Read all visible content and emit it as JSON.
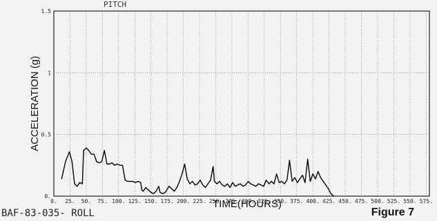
{
  "header_text": "PITCH",
  "footer": {
    "left": "BAF-83-035- ROLL",
    "right": "Figure 7"
  },
  "chart_data": {
    "type": "line",
    "xlabel": "TIME(HOURS)",
    "ylabel": "ACCELERATION (g)",
    "xlim": [
      0,
      580
    ],
    "ylim": [
      0,
      1.5
    ],
    "grid": true,
    "x_ticks": [
      0,
      25,
      50,
      75,
      100,
      125,
      150,
      175,
      200,
      225,
      250,
      275,
      300,
      325,
      350,
      375,
      400,
      425,
      450,
      475,
      500,
      525,
      550,
      575
    ],
    "x_tick_labels": [
      "0.",
      "25.",
      "50.",
      "75.",
      "100.",
      "125.",
      "150.",
      "175.",
      "200.",
      "225.",
      "250.",
      "275.",
      "300.",
      "325.",
      "350.",
      "375.",
      "400.",
      "425.",
      "450.",
      "475.",
      "500.",
      "525.",
      "550.",
      "575."
    ],
    "y_ticks": [
      0,
      0.5,
      1,
      1.5
    ],
    "y_tick_labels": [
      "0.",
      "0.5",
      "1",
      "1.5"
    ],
    "series": [
      {
        "points": [
          [
            12,
            0.14
          ],
          [
            18,
            0.28
          ],
          [
            24,
            0.36
          ],
          [
            28,
            0.28
          ],
          [
            32,
            0.1
          ],
          [
            36,
            0.08
          ],
          [
            40,
            0.11
          ],
          [
            44,
            0.1
          ],
          [
            46,
            0.37
          ],
          [
            50,
            0.39
          ],
          [
            54,
            0.37
          ],
          [
            58,
            0.34
          ],
          [
            62,
            0.34
          ],
          [
            66,
            0.28
          ],
          [
            70,
            0.27
          ],
          [
            74,
            0.28
          ],
          [
            78,
            0.37
          ],
          [
            82,
            0.26
          ],
          [
            86,
            0.26
          ],
          [
            90,
            0.27
          ],
          [
            94,
            0.25
          ],
          [
            98,
            0.26
          ],
          [
            102,
            0.25
          ],
          [
            106,
            0.25
          ],
          [
            110,
            0.13
          ],
          [
            114,
            0.12
          ],
          [
            118,
            0.12
          ],
          [
            122,
            0.12
          ],
          [
            126,
            0.11
          ],
          [
            130,
            0.12
          ],
          [
            134,
            0.11
          ],
          [
            136,
            0.05
          ],
          [
            138,
            0.04
          ],
          [
            142,
            0.07
          ],
          [
            146,
            0.05
          ],
          [
            150,
            0.03
          ],
          [
            154,
            0.02
          ],
          [
            158,
            0.04
          ],
          [
            162,
            0.08
          ],
          [
            164,
            0.03
          ],
          [
            168,
            0.02
          ],
          [
            172,
            0.03
          ],
          [
            178,
            0.08
          ],
          [
            182,
            0.06
          ],
          [
            186,
            0.04
          ],
          [
            190,
            0.07
          ],
          [
            194,
            0.12
          ],
          [
            198,
            0.18
          ],
          [
            202,
            0.26
          ],
          [
            206,
            0.14
          ],
          [
            210,
            0.1
          ],
          [
            214,
            0.12
          ],
          [
            218,
            0.09
          ],
          [
            222,
            0.1
          ],
          [
            226,
            0.13
          ],
          [
            230,
            0.09
          ],
          [
            234,
            0.07
          ],
          [
            238,
            0.1
          ],
          [
            242,
            0.13
          ],
          [
            246,
            0.24
          ],
          [
            248,
            0.12
          ],
          [
            252,
            0.1
          ],
          [
            256,
            0.12
          ],
          [
            260,
            0.09
          ],
          [
            264,
            0.08
          ],
          [
            268,
            0.1
          ],
          [
            272,
            0.07
          ],
          [
            276,
            0.11
          ],
          [
            280,
            0.08
          ],
          [
            284,
            0.09
          ],
          [
            288,
            0.1
          ],
          [
            292,
            0.08
          ],
          [
            296,
            0.09
          ],
          [
            300,
            0.12
          ],
          [
            304,
            0.1
          ],
          [
            308,
            0.09
          ],
          [
            312,
            0.08
          ],
          [
            316,
            0.1
          ],
          [
            320,
            0.09
          ],
          [
            324,
            0.08
          ],
          [
            328,
            0.13
          ],
          [
            332,
            0.1
          ],
          [
            336,
            0.12
          ],
          [
            340,
            0.1
          ],
          [
            344,
            0.18
          ],
          [
            348,
            0.11
          ],
          [
            352,
            0.12
          ],
          [
            356,
            0.1
          ],
          [
            360,
            0.13
          ],
          [
            364,
            0.29
          ],
          [
            368,
            0.12
          ],
          [
            372,
            0.15
          ],
          [
            376,
            0.11
          ],
          [
            380,
            0.14
          ],
          [
            384,
            0.17
          ],
          [
            388,
            0.11
          ],
          [
            392,
            0.3
          ],
          [
            396,
            0.12
          ],
          [
            400,
            0.18
          ],
          [
            404,
            0.14
          ],
          [
            408,
            0.2
          ],
          [
            412,
            0.15
          ],
          [
            416,
            0.12
          ],
          [
            420,
            0.09
          ],
          [
            424,
            0.06
          ],
          [
            428,
            0.02
          ],
          [
            432,
            0.0
          ]
        ]
      }
    ]
  }
}
